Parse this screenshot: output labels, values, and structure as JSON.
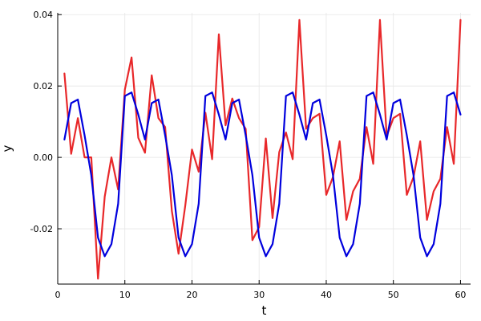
{
  "chart_data": {
    "type": "line",
    "title": "",
    "xlabel": "t",
    "ylabel": "y",
    "xlim": [
      0,
      61.5
    ],
    "ylim": [
      -0.0355,
      0.0405
    ],
    "xticks": [
      0,
      10,
      20,
      30,
      40,
      50,
      60
    ],
    "xtick_labels": [
      "0",
      "10",
      "20",
      "30",
      "40",
      "50",
      "60"
    ],
    "yticks": [
      -0.02,
      0.0,
      0.02,
      0.04
    ],
    "ytick_labels": [
      "-0.02",
      "0.00",
      "0.02",
      "0.04"
    ],
    "grid": true,
    "legend": "none",
    "x": [
      1,
      2,
      3,
      4,
      5,
      6,
      7,
      8,
      9,
      10,
      11,
      12,
      13,
      14,
      15,
      16,
      17,
      18,
      19,
      20,
      21,
      22,
      23,
      24,
      25,
      26,
      27,
      28,
      29,
      30,
      31,
      32,
      33,
      34,
      35,
      36,
      37,
      38,
      39,
      40,
      41,
      42,
      43,
      44,
      45,
      46,
      47,
      48,
      49,
      50,
      51,
      52,
      53,
      54,
      55,
      56,
      57,
      58,
      59,
      60
    ],
    "series": [
      {
        "color": "#e8282a",
        "values": [
          0.0235,
          0.001,
          0.011,
          0.0,
          0.0,
          -0.034,
          -0.011,
          0.0,
          -0.009,
          0.019,
          0.028,
          0.0055,
          0.0013,
          0.023,
          0.011,
          0.0085,
          -0.015,
          -0.027,
          -0.0135,
          0.0022,
          -0.004,
          0.0125,
          -0.0005,
          0.0345,
          0.009,
          0.0165,
          0.011,
          0.008,
          -0.0232,
          -0.0195,
          0.0053,
          -0.017,
          0.0015,
          0.007,
          -0.0005,
          0.0385,
          0.008,
          0.011,
          0.0122,
          -0.0105,
          -0.0055,
          0.0045,
          -0.0175,
          -0.0095,
          -0.006,
          0.0085,
          -0.0018,
          0.0385,
          0.006,
          0.011,
          0.0122,
          -0.0105,
          -0.0055,
          0.0045,
          -0.0175,
          -0.0095,
          -0.006,
          0.0085,
          -0.0018,
          0.0385
        ]
      },
      {
        "color": "#0000dd",
        "values": [
          0.005,
          0.0152,
          0.0162,
          0.0062,
          -0.005,
          -0.0225,
          -0.0277,
          -0.0243,
          -0.013,
          0.0172,
          0.0182,
          0.012,
          0.005,
          0.0152,
          0.0162,
          0.0062,
          -0.005,
          -0.0225,
          -0.0277,
          -0.0243,
          -0.013,
          0.0172,
          0.0182,
          0.012,
          0.005,
          0.0152,
          0.0162,
          0.0062,
          -0.005,
          -0.0225,
          -0.0277,
          -0.0243,
          -0.013,
          0.0172,
          0.0182,
          0.012,
          0.005,
          0.0152,
          0.0162,
          0.0062,
          -0.005,
          -0.0225,
          -0.0277,
          -0.0243,
          -0.013,
          0.0172,
          0.0182,
          0.012,
          0.005,
          0.0152,
          0.0162,
          0.0062,
          -0.005,
          -0.0225,
          -0.0277,
          -0.0243,
          -0.013,
          0.0172,
          0.0182,
          0.012
        ]
      }
    ]
  }
}
